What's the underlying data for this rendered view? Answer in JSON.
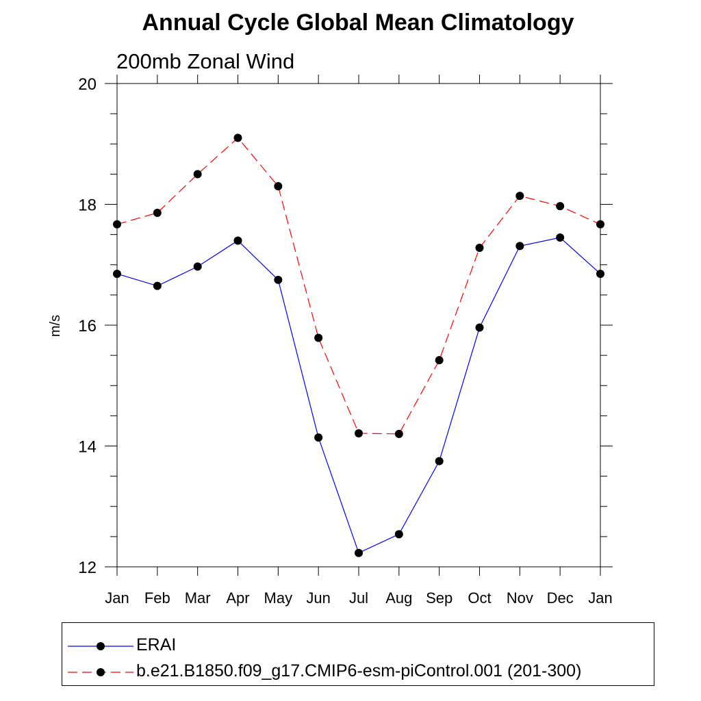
{
  "chart_data": {
    "type": "line",
    "title": "Annual Cycle Global Mean Climatology",
    "subtitle": "200mb Zonal Wind",
    "ylabel": "m/s",
    "xlabel": "",
    "categories": [
      "Jan",
      "Feb",
      "Mar",
      "Apr",
      "May",
      "Jun",
      "Jul",
      "Aug",
      "Sep",
      "Oct",
      "Nov",
      "Dec",
      "Jan"
    ],
    "ylim": [
      12,
      20
    ],
    "yticks": [
      12,
      14,
      16,
      18,
      20
    ],
    "grid": false,
    "legend_position": "bottom",
    "series": [
      {
        "name": "ERAI",
        "color": "#0000ff",
        "style": "solid",
        "marker": "circle",
        "values": [
          16.85,
          16.65,
          16.97,
          17.4,
          16.75,
          14.14,
          12.23,
          12.54,
          13.75,
          15.96,
          17.31,
          17.45,
          16.85
        ]
      },
      {
        "name": "b.e21.B1850.f09_g17.CMIP6-esm-piControl.001 (201-300)",
        "color": "#ff0000",
        "style": "dashed",
        "marker": "circle",
        "values": [
          17.67,
          17.86,
          18.5,
          19.1,
          18.3,
          15.79,
          14.21,
          14.2,
          15.42,
          17.28,
          18.14,
          17.97,
          17.67
        ]
      }
    ]
  }
}
